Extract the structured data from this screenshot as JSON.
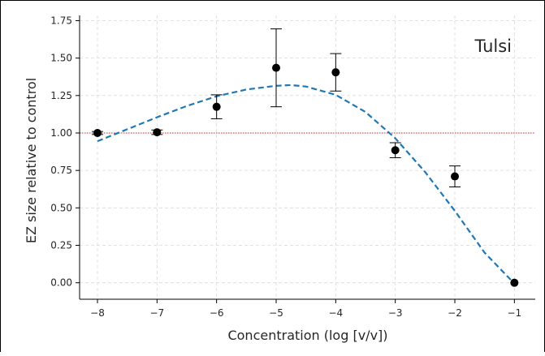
{
  "chart_data": {
    "type": "scatter",
    "annotation": "Tulsi",
    "xlabel": "Concentration (log [v/v])",
    "ylabel": "EZ size relative to control",
    "xlim": [
      -8.3,
      -0.65
    ],
    "ylim": [
      -0.11,
      1.785
    ],
    "xticks": [
      -8,
      -7,
      -6,
      -5,
      -4,
      -3,
      -2,
      -1
    ],
    "xtick_labels": [
      "−8",
      "−7",
      "−6",
      "−5",
      "−4",
      "−3",
      "−2",
      "−1"
    ],
    "yticks": [
      0.0,
      0.25,
      0.5,
      0.75,
      1.0,
      1.25,
      1.5,
      1.75
    ],
    "ytick_labels": [
      "0.00",
      "0.25",
      "0.50",
      "0.75",
      "1.00",
      "1.25",
      "1.50",
      "1.75"
    ],
    "grid": true,
    "reference_line": {
      "y": 1.0,
      "color": "#d62728"
    },
    "points": {
      "x": [
        -8,
        -7,
        -6,
        -5,
        -4,
        -3,
        -2,
        -1
      ],
      "y": [
        1.0,
        1.005,
        1.175,
        1.435,
        1.405,
        0.885,
        0.71,
        0.0
      ],
      "err": [
        0.01,
        0.015,
        0.08,
        0.26,
        0.125,
        0.05,
        0.07,
        0.0
      ],
      "color": "#000000"
    },
    "fit_curve": {
      "x": [
        -8.0,
        -7.5,
        -7.0,
        -6.5,
        -6.0,
        -5.5,
        -5.0,
        -4.75,
        -4.5,
        -4.0,
        -3.5,
        -3.0,
        -2.5,
        -2.0,
        -1.5,
        -1.0
      ],
      "y": [
        0.945,
        1.025,
        1.105,
        1.18,
        1.245,
        1.29,
        1.315,
        1.32,
        1.31,
        1.255,
        1.14,
        0.965,
        0.74,
        0.48,
        0.2,
        -0.005
      ],
      "color": "#1f77b4",
      "style": "dashed"
    }
  }
}
